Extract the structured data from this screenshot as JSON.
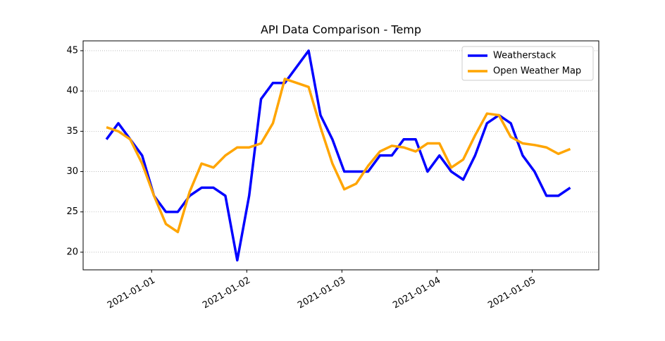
{
  "chart_data": {
    "type": "line",
    "title": "API Data Comparison - Temp",
    "x": [
      -0.475,
      -0.35,
      -0.225,
      -0.1,
      0.025,
      0.15,
      0.275,
      0.4,
      0.525,
      0.65,
      0.775,
      0.9,
      1.025,
      1.15,
      1.275,
      1.4,
      1.525,
      1.65,
      1.775,
      1.9,
      2.025,
      2.15,
      2.275,
      2.4,
      2.525,
      2.65,
      2.775,
      2.9,
      3.025,
      3.15,
      3.275,
      3.4,
      3.525,
      3.65,
      3.775,
      3.9,
      4.025,
      4.15,
      4.275,
      4.4
    ],
    "series": [
      {
        "name": "Weatherstack",
        "color": "#0000ff",
        "values": [
          34,
          36,
          34,
          32,
          27,
          25,
          25,
          27,
          28,
          28,
          27,
          19,
          27,
          39,
          41,
          41,
          43,
          45,
          37,
          34,
          30,
          30,
          30,
          32,
          32,
          34,
          34,
          30,
          32,
          30,
          29,
          32,
          36,
          37,
          36,
          32,
          30,
          27,
          27,
          28
        ]
      },
      {
        "name": "Open Weather Map",
        "color": "#ffa500",
        "values": [
          35.5,
          35,
          34,
          31,
          27,
          23.5,
          22.5,
          27.5,
          31,
          30.5,
          32,
          33,
          33,
          33.5,
          36,
          41.5,
          41,
          40.5,
          35.5,
          31,
          27.8,
          28.5,
          30.7,
          32.5,
          33.2,
          33,
          32.5,
          33.5,
          33.5,
          30.5,
          31.5,
          34.5,
          37.2,
          37,
          34.3,
          33.5,
          33.3,
          33,
          32.2,
          32.8
        ]
      }
    ],
    "xlim": [
      -0.72,
      4.7
    ],
    "xticks": [
      {
        "value": 0,
        "label": "2021-01-01"
      },
      {
        "value": 1,
        "label": "2021-01-02"
      },
      {
        "value": 2,
        "label": "2021-01-03"
      },
      {
        "value": 3,
        "label": "2021-01-04"
      },
      {
        "value": 4,
        "label": "2021-01-05"
      }
    ],
    "ylim": [
      17.81,
      46.22
    ],
    "yticks": [
      20,
      25,
      30,
      35,
      40,
      45
    ],
    "grid": true,
    "legend": "upper right"
  }
}
